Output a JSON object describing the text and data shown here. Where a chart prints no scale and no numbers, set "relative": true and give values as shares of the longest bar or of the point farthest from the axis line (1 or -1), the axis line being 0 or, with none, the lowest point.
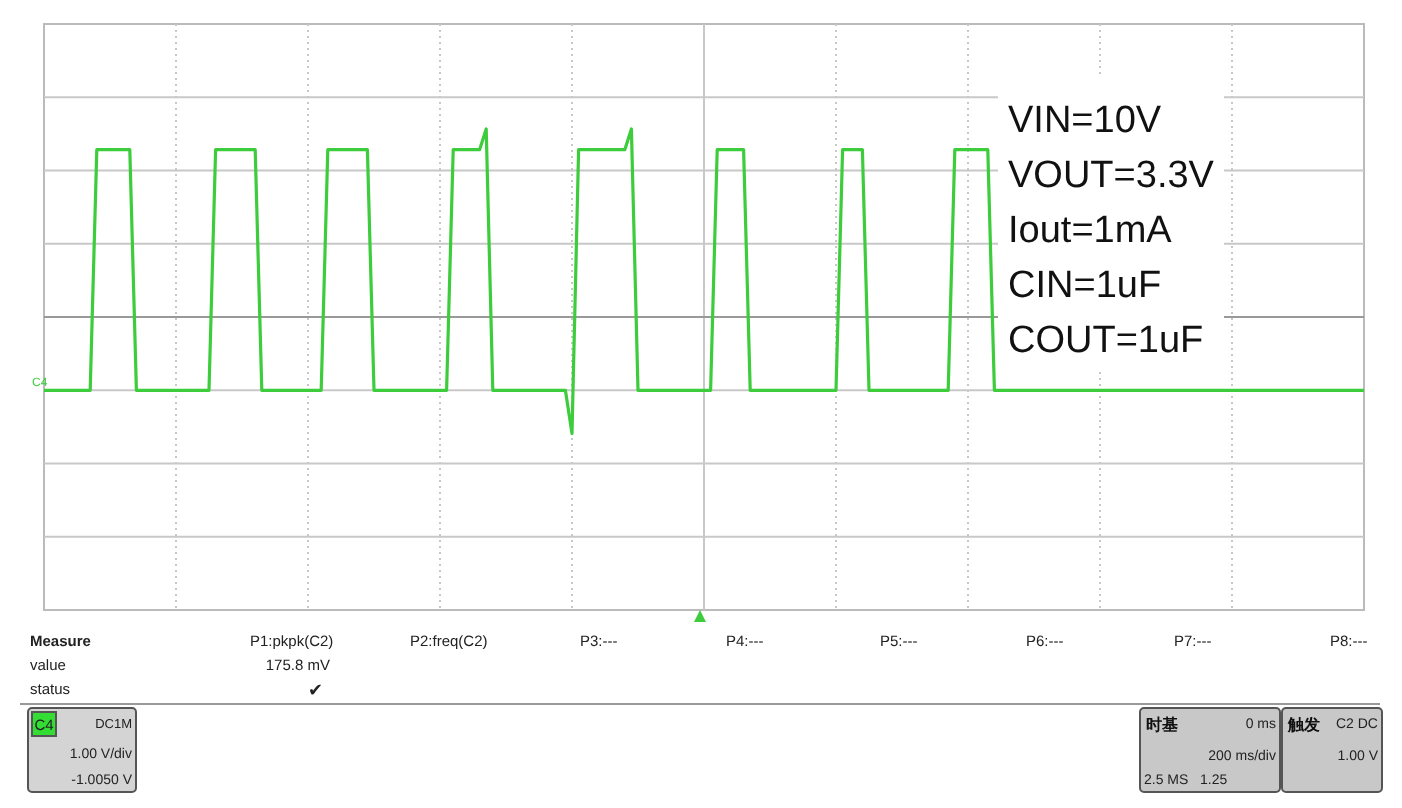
{
  "chart_data": {
    "type": "line",
    "relative": true,
    "grid": true,
    "categories": [
      null,
      null,
      null,
      null,
      null,
      null,
      null,
      null,
      null,
      null,
      null,
      null,
      null,
      null,
      null,
      null,
      null,
      null,
      null,
      null,
      null,
      null,
      null,
      null,
      null,
      null,
      null,
      null,
      null,
      null,
      null,
      null,
      null,
      null,
      null,
      null,
      null,
      null,
      null,
      null,
      null,
      null,
      null,
      null,
      null,
      null,
      null,
      null,
      null,
      null,
      null,
      null,
      null,
      null,
      null,
      null,
      null,
      null,
      null,
      null,
      null,
      null,
      null,
      null,
      null,
      null,
      null,
      null,
      null,
      null,
      null,
      null,
      null,
      null,
      null,
      null,
      null,
      null,
      null,
      null,
      null,
      null,
      null,
      null,
      null,
      null,
      null,
      null,
      null,
      null,
      null,
      null,
      null,
      null,
      null,
      null,
      null,
      null,
      null,
      null,
      null,
      null,
      null,
      null,
      null,
      null,
      null,
      null,
      null,
      null,
      null,
      null,
      null,
      null,
      null,
      null,
      null,
      null,
      null,
      null,
      null,
      null,
      null,
      null,
      null,
      null,
      null,
      null,
      null,
      null,
      null,
      null,
      null,
      null,
      null,
      null,
      null,
      null,
      null,
      null,
      null,
      null,
      null,
      null,
      null,
      null,
      null,
      null,
      null,
      null,
      null,
      null,
      null,
      null,
      null,
      null,
      null,
      null,
      null,
      null,
      null,
      null,
      null,
      null,
      null,
      null,
      null,
      null,
      null,
      null,
      null,
      null,
      null,
      null,
      null,
      null,
      null,
      null,
      null,
      null,
      null,
      null,
      null,
      null,
      null,
      null,
      null,
      null,
      null,
      null,
      null,
      null,
      null,
      null,
      null,
      null,
      null,
      null,
      null,
      null,
      null
    ],
    "series": [
      {
        "color": "#3ccc3c",
        "values": [
          -0.39,
          -0.39,
          -0.39,
          -0.39,
          -0.39,
          -0.39,
          -0.39,
          -0.39,
          0.89,
          0.89,
          0.89,
          0.89,
          0.89,
          0.89,
          -0.39,
          -0.39,
          -0.39,
          -0.39,
          -0.39,
          -0.39,
          -0.39,
          -0.39,
          -0.39,
          -0.39,
          -0.39,
          -0.39,
          0.89,
          0.89,
          0.89,
          0.89,
          0.89,
          0.89,
          0.89,
          -0.39,
          -0.39,
          -0.39,
          -0.39,
          -0.39,
          -0.39,
          -0.39,
          -0.39,
          -0.39,
          -0.39,
          0.89,
          0.89,
          0.89,
          0.89,
          0.89,
          0.89,
          0.89,
          -0.39,
          -0.39,
          -0.39,
          -0.39,
          -0.39,
          -0.39,
          -0.39,
          -0.39,
          -0.39,
          -0.39,
          -0.39,
          -0.39,
          0.89,
          0.89,
          0.89,
          0.89,
          0.89,
          1,
          -0.39,
          -0.39,
          -0.39,
          -0.39,
          -0.39,
          -0.39,
          -0.39,
          -0.39,
          -0.39,
          -0.39,
          -0.39,
          -0.39,
          -0.62,
          0.89,
          0.89,
          0.89,
          0.89,
          0.89,
          0.89,
          0.89,
          0.89,
          1,
          -0.39,
          -0.39,
          -0.39,
          -0.39,
          -0.39,
          -0.39,
          -0.39,
          -0.39,
          -0.39,
          -0.39,
          -0.39,
          -0.39,
          0.89,
          0.89,
          0.89,
          0.89,
          0.89,
          -0.39,
          -0.39,
          -0.39,
          -0.39,
          -0.39,
          -0.39,
          -0.39,
          -0.39,
          -0.39,
          -0.39,
          -0.39,
          -0.39,
          -0.39,
          -0.39,
          0.89,
          0.89,
          0.89,
          0.89,
          -0.39,
          -0.39,
          -0.39,
          -0.39,
          -0.39,
          -0.39,
          -0.39,
          -0.39,
          -0.39,
          -0.39,
          -0.39,
          -0.39,
          -0.39,
          0.89,
          0.89,
          0.89,
          0.89,
          0.89,
          0.89,
          -0.39,
          -0.39,
          -0.39,
          -0.39,
          -0.39,
          -0.39,
          -0.39,
          -0.39,
          -0.39,
          -0.39,
          -0.39,
          -0.39,
          -0.39,
          -0.39,
          -0.39,
          -0.39,
          -0.39,
          -0.39,
          -0.39,
          -0.39,
          -0.39,
          -0.39,
          -0.39,
          -0.39,
          -0.39,
          -0.39,
          -0.39,
          -0.39,
          -0.39,
          -0.39,
          -0.39,
          -0.39,
          -0.39,
          -0.39,
          -0.39,
          -0.39,
          -0.39,
          -0.39,
          -0.39,
          -0.39,
          -0.39,
          -0.39,
          -0.39,
          -0.39,
          -0.39,
          -0.39,
          -0.39,
          -0.39,
          -0.39,
          -0.39,
          -0.39,
          -0.39,
          -0.39,
          -0.39,
          -0.39,
          -0.39,
          -0.39
        ]
      }
    ],
    "annotations": [
      "VIN=10V",
      "VOUT=3.3V",
      "Iout=1mA",
      "CIN=1uF",
      "COUT=1uF",
      "C4",
      "Measure",
      "value",
      "status",
      "P1:pkpk(C2)",
      "175.8 mV",
      "✔",
      "P2:freq(C2)",
      "P3:---",
      "P4:---",
      "P5:---",
      "P6:---",
      "P7:---",
      "P8:---",
      "C4",
      "DC1M",
      "1.00 V/div",
      "-1.0050 V",
      "时基",
      "0 ms",
      "200 ms/div",
      "2.5 MS",
      "1.25",
      "触发",
      "C2 DC",
      "1.00 V"
    ]
  }
}
